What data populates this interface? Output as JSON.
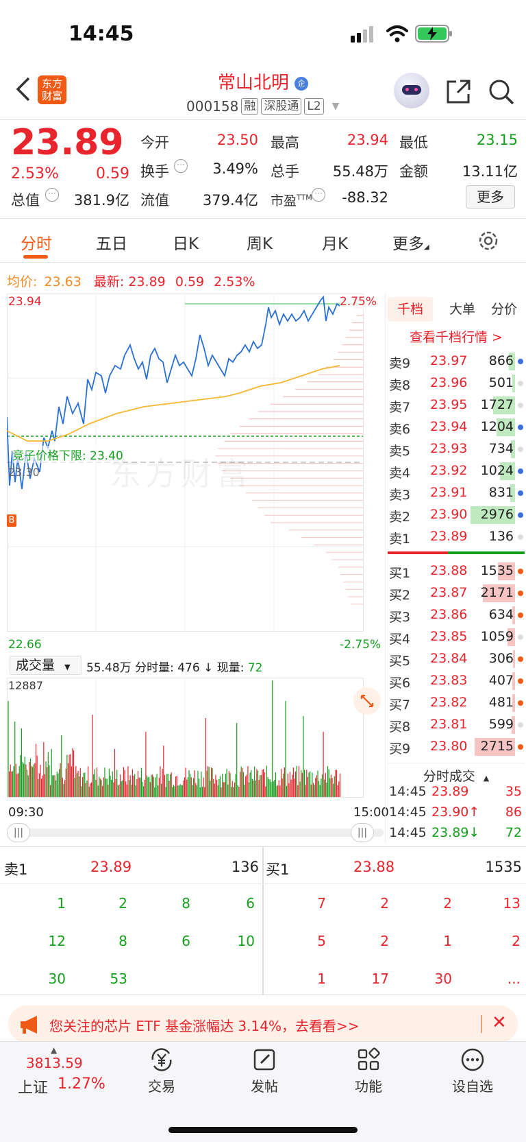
{
  "status_bar": {
    "time": "14:45"
  },
  "header": {
    "brand_logo": "东方财富",
    "stock_name": "常山北明",
    "code": "000158",
    "tags": [
      "融",
      "深股通",
      "L2"
    ]
  },
  "quote": {
    "price": "23.89",
    "change_pct": "2.53%",
    "change": "0.59",
    "fields": [
      {
        "label": "今开",
        "value": "23.50",
        "color": "red"
      },
      {
        "label": "最高",
        "value": "23.94",
        "color": "red"
      },
      {
        "label": "最低",
        "value": "23.15",
        "color": "green"
      },
      {
        "label": "换手",
        "value": "3.49%",
        "color": "black"
      },
      {
        "label": "总手",
        "value": "55.48万",
        "color": "black"
      },
      {
        "label": "金额",
        "value": "13.11亿",
        "color": "black"
      },
      {
        "label": "总值",
        "value": "381.9亿",
        "color": "black"
      },
      {
        "label": "流值",
        "value": "379.4亿",
        "color": "black"
      },
      {
        "label": "市盈",
        "value": "-88.32",
        "color": "black"
      }
    ],
    "pe_sup": "TTM",
    "more_button": "更多"
  },
  "tabs": [
    "分时",
    "五日",
    "日K",
    "周K",
    "月K",
    "更多"
  ],
  "chart_info": {
    "avg_label": "均价:",
    "avg_value": "23.63",
    "latest_label": "最新:",
    "latest_value": "23.89",
    "latest_change": "0.59",
    "latest_pct": "2.53%",
    "y_high": "23.94",
    "y_low": "22.66",
    "pct_high": "2.75%",
    "pct_low": "-2.75%",
    "mid_label": "23.30",
    "lower_limit_label": "竞子价格下限: 23.40",
    "watermark": "东方财富",
    "b_marker": "B",
    "time_start": "09:30",
    "time_end": "15:00"
  },
  "volume_info": {
    "selector": "成交量",
    "summary": "55.48万 分时量: 476 ↓ 现量:",
    "current": "72",
    "max": "12887"
  },
  "side_tabs": [
    "千档",
    "大单",
    "分价"
  ],
  "side_link": "查看千档行情 >",
  "asks": [
    {
      "label": "卖9",
      "price": "23.97",
      "vol": "866",
      "bar": 0.12,
      "dot": "blue"
    },
    {
      "label": "卖8",
      "price": "23.96",
      "vol": "501",
      "bar": 0.05,
      "dot": "gray"
    },
    {
      "label": "卖7",
      "price": "23.95",
      "vol": "1727",
      "bar": 0.45,
      "dot": "gray"
    },
    {
      "label": "卖6",
      "price": "23.94",
      "vol": "1204",
      "bar": 0.38,
      "dot": "blue"
    },
    {
      "label": "卖5",
      "price": "23.93",
      "vol": "734",
      "bar": 0.08,
      "dot": "gray"
    },
    {
      "label": "卖4",
      "price": "23.92",
      "vol": "1024",
      "bar": 0.3,
      "dot": "blue"
    },
    {
      "label": "卖3",
      "price": "23.91",
      "vol": "831",
      "bar": 0.1,
      "dot": "blue"
    },
    {
      "label": "卖2",
      "price": "23.90",
      "vol": "2976",
      "bar": 0.9,
      "dot": "blue"
    },
    {
      "label": "卖1",
      "price": "23.89",
      "vol": "136",
      "bar": 0.0,
      "dot": "gray"
    }
  ],
  "bids": [
    {
      "label": "买1",
      "price": "23.88",
      "vol": "1535",
      "bar": 0.35,
      "dot": "orange"
    },
    {
      "label": "买2",
      "price": "23.87",
      "vol": "2171",
      "bar": 0.65,
      "dot": "orange"
    },
    {
      "label": "买3",
      "price": "23.86",
      "vol": "634",
      "bar": 0.06,
      "dot": "orange"
    },
    {
      "label": "买4",
      "price": "23.85",
      "vol": "1059",
      "bar": 0.15,
      "dot": "gray"
    },
    {
      "label": "买5",
      "price": "23.84",
      "vol": "306",
      "bar": 0.04,
      "dot": "orange"
    },
    {
      "label": "买6",
      "price": "23.83",
      "vol": "407",
      "bar": 0.05,
      "dot": "orange"
    },
    {
      "label": "买7",
      "price": "23.82",
      "vol": "481",
      "bar": 0.06,
      "dot": "orange"
    },
    {
      "label": "买8",
      "price": "23.81",
      "vol": "599",
      "bar": 0.07,
      "dot": "gray"
    },
    {
      "label": "买9",
      "price": "23.80",
      "vol": "2715",
      "bar": 0.82,
      "dot": "orange"
    }
  ],
  "tick_header": "分时成交",
  "ticks": [
    {
      "time": "14:45",
      "price": "23.89",
      "vol": "35",
      "arrow": "",
      "vol_color": "red"
    },
    {
      "time": "14:45",
      "price": "23.90↑",
      "vol": "86",
      "arrow": "up",
      "vol_color": "red"
    },
    {
      "time": "14:45",
      "price": "23.89↓",
      "vol": "72",
      "arrow": "down",
      "vol_color": "green"
    }
  ],
  "order_queue": {
    "ask_label": "卖1",
    "ask_price": "23.89",
    "ask_vol": "136",
    "bid_label": "买1",
    "bid_price": "23.88",
    "bid_vol": "1535",
    "ask_rows": [
      [
        "1",
        "2",
        "8",
        "6"
      ],
      [
        "12",
        "8",
        "6",
        "10"
      ],
      [
        "30",
        "53",
        "",
        ""
      ]
    ],
    "bid_rows": [
      [
        "7",
        "2",
        "2",
        "13"
      ],
      [
        "5",
        "2",
        "1",
        "2"
      ],
      [
        "1",
        "17",
        "30",
        "..."
      ]
    ]
  },
  "banner": {
    "text": "您关注的芯片 ETF 基金涨幅达 3.14%，去看看>>"
  },
  "bottom_nav": {
    "index_value": "3813.59",
    "index_name": "上证",
    "index_pct": "1.27%",
    "items": [
      "交易",
      "发帖",
      "功能",
      "设自选"
    ]
  },
  "colors": {
    "up": "#e8242c",
    "down": "#14a01e",
    "accent": "#f05a14",
    "price_line": "#2a6fd6",
    "avg_line": "#f5b731"
  }
}
